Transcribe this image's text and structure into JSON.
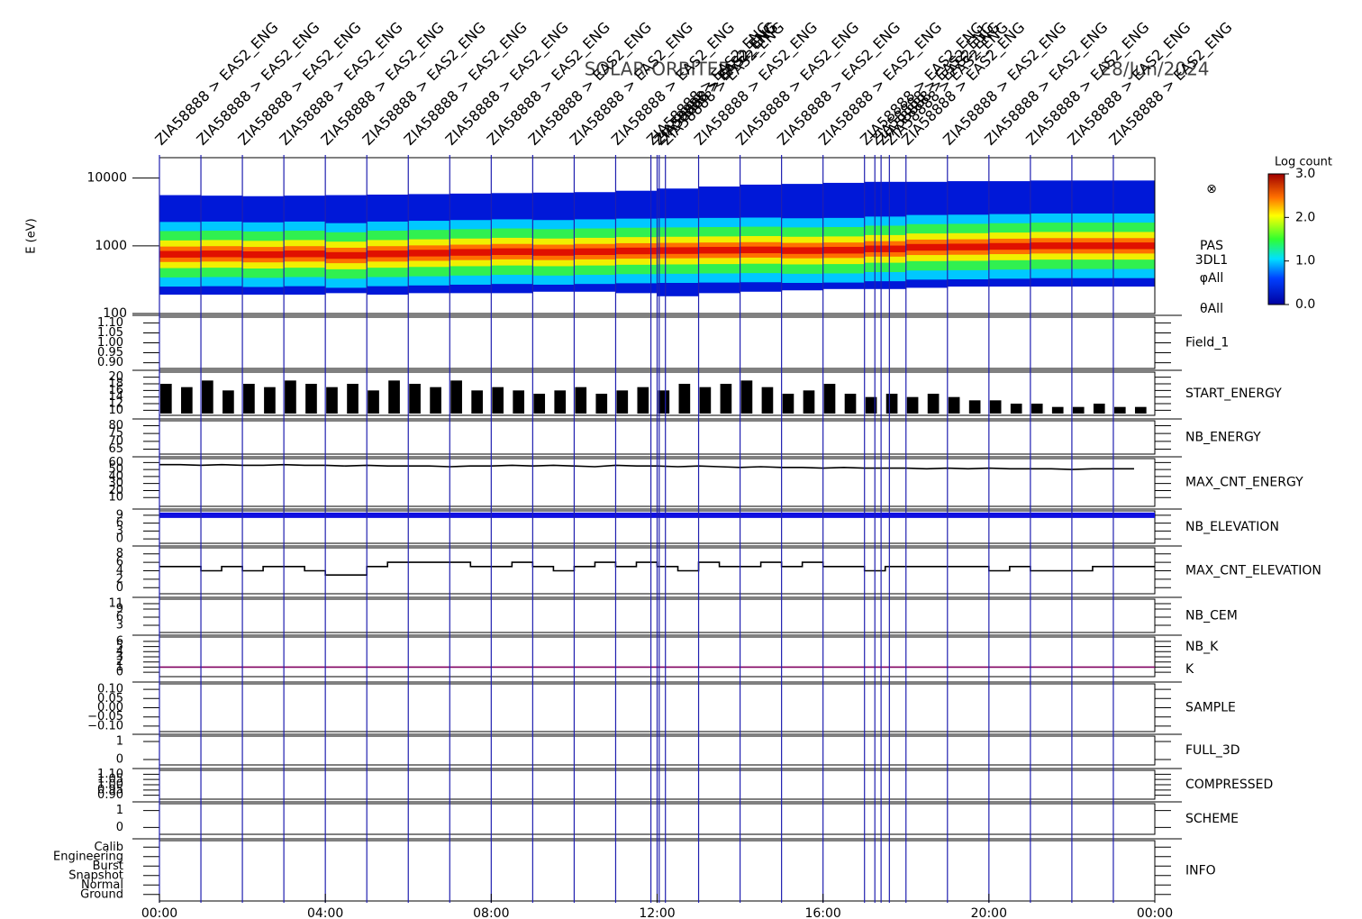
{
  "chart_data": {
    "type": "timeseries",
    "title": "SOLAR-ORBITER",
    "date": "28/Jun/2024",
    "xlim": [
      0,
      24
    ],
    "xticks": [
      {
        "value": 0,
        "label": "00:00"
      },
      {
        "value": 4,
        "label": "04:00"
      },
      {
        "value": 8,
        "label": "08:00"
      },
      {
        "value": 12,
        "label": "12:00"
      },
      {
        "value": 16,
        "label": "16:00"
      },
      {
        "value": 20,
        "label": "20:00"
      },
      {
        "value": 24,
        "label": "00:00"
      }
    ],
    "events": {
      "label": "ZIA58888 > EAS2_ENG",
      "color": "#2020b0",
      "x": [
        0,
        1,
        2,
        3,
        4,
        5,
        6,
        7,
        8,
        9,
        10,
        11,
        11.85,
        12,
        12.05,
        12.2,
        13,
        14,
        15,
        16,
        17,
        17.25,
        17.4,
        17.6,
        18,
        19,
        20,
        21,
        22,
        23
      ]
    },
    "spectrogram": {
      "ylabel": "E (eV)",
      "ylim": [
        100,
        20000
      ],
      "yticks": [
        100,
        1000,
        10000
      ],
      "x": [
        0,
        1,
        2,
        3,
        4,
        5,
        6,
        7,
        8,
        9,
        10,
        11,
        12,
        13,
        14,
        15,
        16,
        17,
        18,
        19,
        20,
        21,
        22,
        23
      ],
      "peak": [
        750,
        760,
        740,
        760,
        720,
        760,
        780,
        800,
        820,
        800,
        820,
        840,
        850,
        860,
        870,
        850,
        860,
        900,
        950,
        960,
        980,
        1000,
        1000,
        1000
      ],
      "low": [
        190,
        190,
        190,
        190,
        200,
        190,
        200,
        200,
        200,
        210,
        210,
        200,
        180,
        200,
        210,
        220,
        230,
        230,
        240,
        250,
        250,
        250,
        250,
        250
      ],
      "high": [
        5600,
        5500,
        5400,
        5500,
        5600,
        5700,
        5800,
        5900,
        6000,
        6100,
        6200,
        6500,
        7000,
        7500,
        8000,
        8200,
        8500,
        8800,
        8800,
        9000,
        9000,
        9200,
        9200,
        9200
      ],
      "labels": [
        "⊗",
        "PAS",
        "3DL1",
        "φAll",
        "θAll"
      ],
      "colorbar": {
        "label": "Log count",
        "clim": [
          0,
          3
        ],
        "cticks": [
          {
            "value": 0,
            "label": "0.0"
          },
          {
            "value": 1,
            "label": "1.0"
          },
          {
            "value": 2,
            "label": "2.0"
          },
          {
            "value": 3,
            "label": "3.0"
          }
        ]
      }
    },
    "panels": [
      {
        "labels": [
          {
            "text": "Field_1",
            "color": "#2020c0"
          }
        ],
        "ylim": [
          0.88,
          1.12
        ],
        "yticks": [
          {
            "value": 0.9,
            "label": "0.90"
          },
          {
            "value": 0.95,
            "label": "0.95"
          },
          {
            "value": 1,
            "label": "1.00"
          },
          {
            "value": 1.05,
            "label": "1.05"
          },
          {
            "value": 1.1,
            "label": "1.10"
          }
        ]
      },
      {
        "labels": [
          {
            "text": "START_ENERGY",
            "color": "#000000"
          }
        ],
        "style": "bar",
        "color": "#000000",
        "ylim": [
          9,
          21
        ],
        "yticks": [
          10,
          12,
          14,
          16,
          18,
          20
        ],
        "x": [
          0,
          0.5,
          1,
          1.5,
          2,
          2.5,
          3,
          3.5,
          4,
          4.5,
          5,
          5.5,
          6,
          6.5,
          7,
          7.5,
          8,
          8.5,
          9,
          9.5,
          10,
          10.5,
          11,
          11.5,
          12,
          12.5,
          13,
          13.5,
          14,
          14.5,
          15,
          15.5,
          16,
          16.5,
          17,
          17.5,
          18,
          18.5,
          19,
          19.5,
          20,
          20.5,
          21,
          21.5,
          22,
          22.5,
          23,
          23.5
        ],
        "values": [
          18,
          17,
          19,
          16,
          18,
          17,
          19,
          18,
          17,
          18,
          16,
          19,
          18,
          17,
          19,
          16,
          17,
          16,
          15,
          16,
          17,
          15,
          16,
          17,
          16,
          18,
          17,
          18,
          19,
          17,
          15,
          16,
          18,
          15,
          14,
          15,
          14,
          15,
          14,
          13,
          13,
          12,
          12,
          11,
          11,
          12,
          11,
          11
        ]
      },
      {
        "labels": [
          {
            "text": "NB_ENERGY",
            "color": "#2020c0"
          }
        ],
        "ylim": [
          63,
          82
        ],
        "yticks": [
          65,
          70,
          75,
          80
        ]
      },
      {
        "labels": [
          {
            "text": "MAX_CNT_ENERGY",
            "color": "#000000"
          }
        ],
        "style": "line",
        "color": "#000000",
        "ylim": [
          0,
          63
        ],
        "yticks": [
          10,
          20,
          30,
          40,
          50,
          60
        ],
        "x": [
          0,
          0.5,
          1,
          1.5,
          2,
          2.5,
          3,
          3.5,
          4,
          4.5,
          5,
          5.5,
          6,
          6.5,
          7,
          7.5,
          8,
          8.5,
          9,
          9.5,
          10,
          10.5,
          11,
          11.5,
          12,
          12.5,
          13,
          13.5,
          14,
          14.5,
          15,
          15.5,
          16,
          16.5,
          17,
          17.5,
          18,
          18.5,
          19,
          19.5,
          20,
          20.5,
          21,
          21.5,
          22,
          22.5,
          23,
          23.5
        ],
        "values": [
          57,
          57,
          56,
          57,
          56,
          56,
          57,
          56,
          56,
          55,
          56,
          55,
          55,
          55,
          54,
          55,
          55,
          56,
          55,
          56,
          55,
          54,
          56,
          55,
          55,
          54,
          55,
          54,
          53,
          54,
          53,
          53,
          52,
          53,
          52,
          52,
          52,
          51,
          52,
          51,
          52,
          51,
          51,
          51,
          50,
          51,
          51,
          51
        ]
      },
      {
        "labels": [
          {
            "text": "NB_ELEVATION",
            "color": "#2020c0"
          }
        ],
        "style": "line",
        "color": "#1010e0",
        "ylim": [
          -1,
          10
        ],
        "yticks": [
          0,
          3,
          6,
          9
        ],
        "x": [
          0,
          1,
          2,
          3,
          4,
          5,
          6,
          7,
          8,
          9,
          10,
          11,
          12,
          13,
          14,
          15,
          16,
          17,
          18,
          19,
          20,
          21,
          22,
          23,
          24
        ],
        "values": [
          9,
          9,
          9,
          9,
          9,
          9,
          9,
          9,
          9,
          9,
          9,
          9,
          9,
          9,
          9,
          9,
          9,
          9,
          9,
          9,
          9,
          9,
          9,
          9,
          9
        ]
      },
      {
        "labels": [
          {
            "text": "MAX_CNT_ELEVATION",
            "color": "#000000"
          }
        ],
        "style": "step",
        "color": "#000000",
        "ylim": [
          -1,
          9
        ],
        "yticks": [
          0,
          2,
          4,
          6,
          8
        ],
        "x": [
          0,
          0.5,
          1,
          1.5,
          2,
          2.5,
          3,
          3.5,
          4,
          4.5,
          5,
          5.5,
          6,
          6.5,
          7,
          7.5,
          8,
          8.5,
          9,
          9.5,
          10,
          10.5,
          11,
          11.5,
          12,
          12.5,
          13,
          13.5,
          14,
          14.5,
          15,
          15.5,
          16,
          16.5,
          17,
          17.5,
          18,
          18.5,
          19,
          19.5,
          20,
          20.5,
          21,
          21.5,
          22,
          22.5,
          23,
          23.5
        ],
        "values": [
          5,
          5,
          4,
          5,
          4,
          5,
          5,
          4,
          3,
          3,
          5,
          6,
          6,
          6,
          6,
          5,
          5,
          6,
          5,
          4,
          5,
          6,
          5,
          6,
          5,
          4,
          6,
          5,
          5,
          6,
          5,
          6,
          5,
          5,
          4,
          5,
          5,
          5,
          5,
          5,
          4,
          5,
          4,
          4,
          4,
          5,
          5,
          5
        ]
      },
      {
        "labels": [
          {
            "text": "NB_CEM",
            "color": "#2020c0"
          }
        ],
        "ylim": [
          1,
          12
        ],
        "yticks": [
          3,
          6,
          9,
          11
        ]
      },
      {
        "labels": [
          {
            "text": "NB_K",
            "color": "#c02020"
          },
          {
            "text": "K",
            "color": "#2020c0"
          }
        ],
        "style": "line",
        "color": "#800060",
        "ylim": [
          -0.5,
          6.5
        ],
        "yticks": [
          0,
          1,
          2,
          3,
          4,
          5,
          6
        ],
        "x": [
          0,
          24
        ],
        "values": [
          1,
          1
        ]
      },
      {
        "labels": [
          {
            "text": "SAMPLE",
            "color": "#2020c0"
          }
        ],
        "ylim": [
          -0.12,
          0.12
        ],
        "yticks": [
          {
            "value": -0.1,
            "label": "−0.10"
          },
          {
            "value": -0.05,
            "label": "−0.05"
          },
          {
            "value": 0,
            "label": "0.00"
          },
          {
            "value": 0.05,
            "label": "0.05"
          },
          {
            "value": 0.1,
            "label": "0.10"
          }
        ]
      },
      {
        "labels": [
          {
            "text": "FULL_3D",
            "color": "#2020c0"
          }
        ],
        "ylim": [
          -0.2,
          1.2
        ],
        "yticks": [
          0,
          1
        ]
      },
      {
        "labels": [
          {
            "text": "COMPRESSED",
            "color": "#000000"
          }
        ],
        "ylim": [
          0.88,
          1.12
        ],
        "yticks": [
          {
            "value": 0.9,
            "label": "0.90"
          },
          {
            "value": 0.95,
            "label": "0.95"
          },
          {
            "value": 1,
            "label": "1.00"
          },
          {
            "value": 1.05,
            "label": "1.05"
          },
          {
            "value": 1.1,
            "label": "1.10"
          }
        ]
      },
      {
        "labels": [
          {
            "text": "SCHEME",
            "color": "#000000"
          }
        ],
        "ylim": [
          -0.3,
          1.3
        ],
        "yticks": [
          0,
          1
        ]
      },
      {
        "labels": [
          {
            "text": "INFO",
            "color": "#000000"
          }
        ],
        "ylim": [
          -0.5,
          5.5
        ],
        "yticks": [
          {
            "value": 0,
            "label": "Ground"
          },
          {
            "value": 1,
            "label": "Normal"
          },
          {
            "value": 2,
            "label": "Snapshot"
          },
          {
            "value": 3,
            "label": "Burst"
          },
          {
            "value": 4,
            "label": "Engineering"
          },
          {
            "value": 5,
            "label": "Calib"
          }
        ]
      }
    ]
  }
}
